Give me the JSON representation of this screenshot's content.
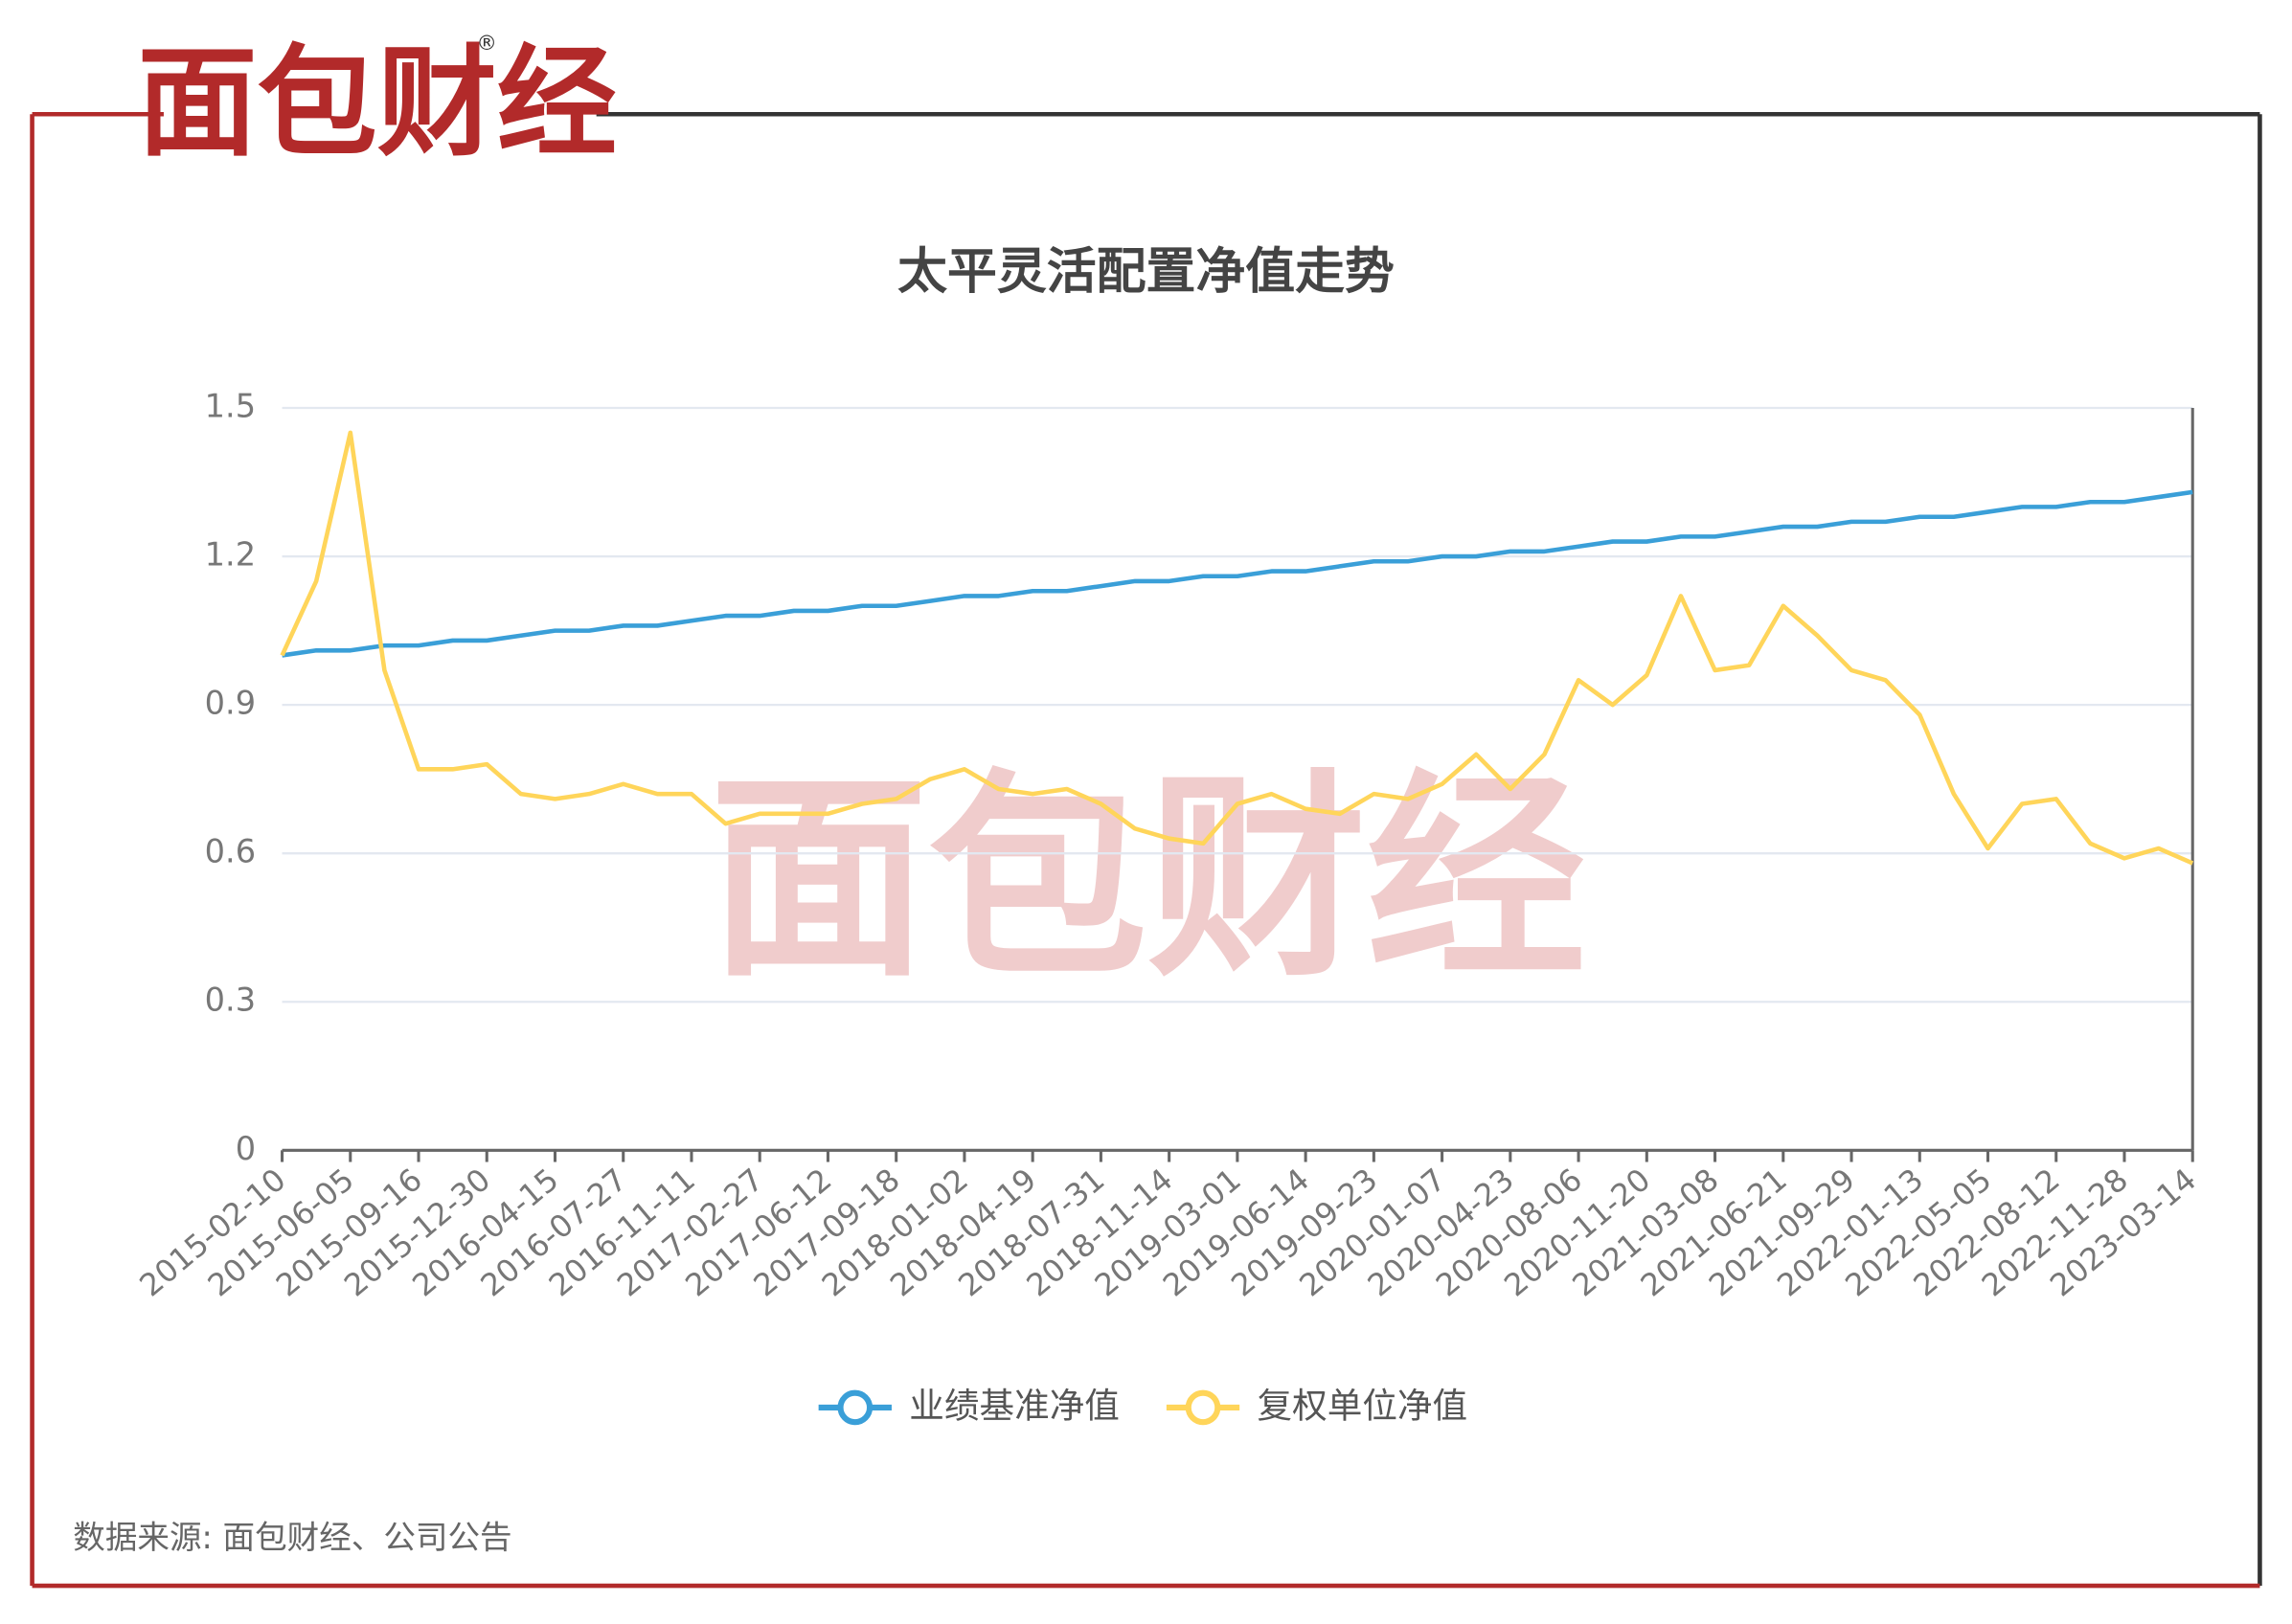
{
  "logo": {
    "text": "面包财经",
    "mark": "®"
  },
  "watermark": "面包财经",
  "source": "数据来源: 面包财经、公司公告",
  "chart_data": {
    "type": "line",
    "title": "太平灵活配置净值走势",
    "categories": [
      "2015-02-10",
      null,
      "2015-06-05",
      null,
      "2015-09-16",
      null,
      "2015-12-30",
      null,
      "2016-04-15",
      null,
      "2016-07-27",
      null,
      "2016-11-11",
      null,
      "2017-02-27",
      null,
      "2017-06-12",
      null,
      "2017-09-18",
      null,
      "2018-01-02",
      null,
      "2018-04-19",
      null,
      "2018-07-31",
      null,
      "2018-11-14",
      null,
      "2019-03-01",
      null,
      "2019-06-14",
      null,
      "2019-09-23",
      null,
      "2020-01-07",
      null,
      "2020-04-23",
      null,
      "2020-08-06",
      null,
      "2020-11-20",
      null,
      "2021-03-08",
      null,
      "2021-06-21",
      null,
      "2021-09-29",
      null,
      "2022-01-13",
      null,
      "2022-05-05",
      null,
      "2022-08-12",
      null,
      "2022-11-28",
      null,
      "2023-03-14"
    ],
    "series": [
      {
        "name": "业绩基准净值",
        "color": "#3a9fd8",
        "values": [
          1.0,
          1.01,
          1.01,
          1.02,
          1.02,
          1.03,
          1.03,
          1.04,
          1.05,
          1.05,
          1.06,
          1.06,
          1.07,
          1.08,
          1.08,
          1.09,
          1.09,
          1.1,
          1.1,
          1.11,
          1.12,
          1.12,
          1.13,
          1.13,
          1.14,
          1.15,
          1.15,
          1.16,
          1.16,
          1.17,
          1.17,
          1.18,
          1.19,
          1.19,
          1.2,
          1.2,
          1.21,
          1.21,
          1.22,
          1.23,
          1.23,
          1.24,
          1.24,
          1.25,
          1.26,
          1.26,
          1.27,
          1.27,
          1.28,
          1.28,
          1.29,
          1.3,
          1.3,
          1.31,
          1.31,
          1.32,
          1.33
        ]
      },
      {
        "name": "复权单位净值",
        "color": "#ffd55a",
        "values": [
          1.0,
          1.15,
          1.45,
          0.97,
          0.77,
          0.77,
          0.78,
          0.72,
          0.71,
          0.72,
          0.74,
          0.72,
          0.72,
          0.66,
          0.68,
          0.68,
          0.68,
          0.7,
          0.71,
          0.75,
          0.77,
          0.73,
          0.72,
          0.73,
          0.7,
          0.65,
          0.63,
          0.62,
          0.7,
          0.72,
          0.69,
          0.68,
          0.72,
          0.71,
          0.74,
          0.8,
          0.73,
          0.8,
          0.95,
          0.9,
          0.96,
          1.12,
          0.97,
          0.98,
          1.1,
          1.04,
          0.97,
          0.95,
          0.88,
          0.72,
          0.61,
          0.7,
          0.71,
          0.62,
          0.59,
          0.61,
          0.58
        ]
      }
    ],
    "ylim": [
      0,
      1.5
    ],
    "yticks": [
      0,
      0.3,
      0.6,
      0.9,
      1.2,
      1.5
    ],
    "grid": true,
    "legend": "bottom"
  }
}
